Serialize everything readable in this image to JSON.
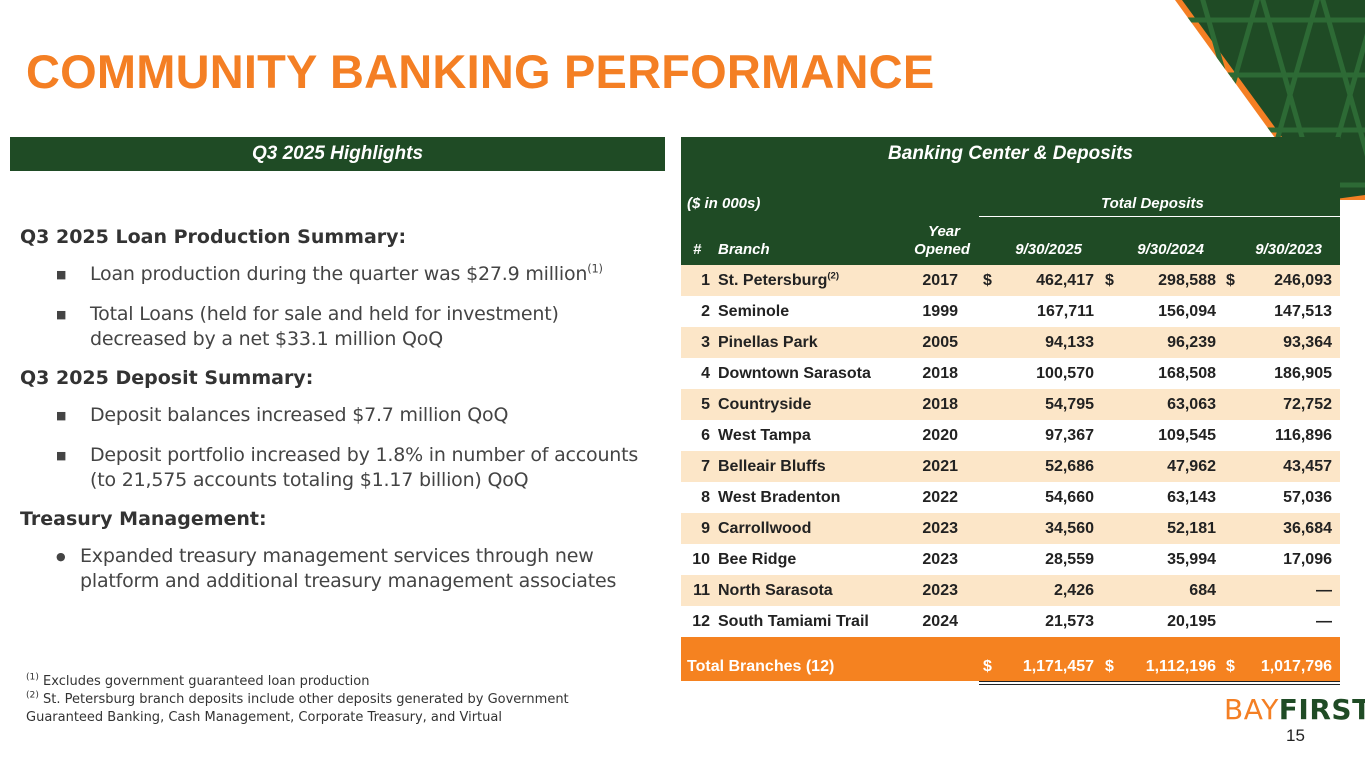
{
  "title": "COMMUNITY BANKING PERFORMANCE",
  "left_header": "Q3 2025 Highlights",
  "right_header": "Banking Center & Deposits",
  "highlights": {
    "loan_head": "Q3 2025 Loan Production Summary:",
    "loan_item1": "Loan production during the quarter was $27.9 million",
    "loan_item1_sup": "(1)",
    "loan_item2": "Total Loans (held for sale and held for investment) decreased by a net $33.1 million QoQ",
    "deposit_head": "Q3 2025 Deposit Summary:",
    "deposit_item1": "Deposit balances increased $7.7 million QoQ",
    "deposit_item2": "Deposit portfolio increased by 1.8% in number of accounts (to 21,575 accounts totaling $1.17 billion) QoQ",
    "treasury_head": "Treasury Management:",
    "treasury_item1": "Expanded treasury management services through new platform and additional treasury management associates"
  },
  "footnotes": {
    "f1_mark": "(1)",
    "f1": "Excludes government guaranteed loan production",
    "f2_mark": "(2)",
    "f2_line1": "St. Petersburg branch deposits include other deposits generated by Government",
    "f2_line2": "Guaranteed Banking, Cash Management, Corporate Treasury, and Virtual"
  },
  "table": {
    "units": "($ in 000s)",
    "group_label": "Total Deposits",
    "col_num": "#",
    "col_branch": "Branch",
    "col_year_1": "Year",
    "col_year_2": "Opened",
    "col_d1": "9/30/2025",
    "col_d2": "9/30/2024",
    "col_d3": "9/30/2023",
    "rows": [
      {
        "num": "1",
        "branch": "St. Petersburg",
        "sup": "(2)",
        "year": "2017",
        "dollar": "$",
        "v1": "462,417",
        "v2": "298,588",
        "v3": "246,093"
      },
      {
        "num": "2",
        "branch": "Seminole",
        "sup": "",
        "year": "1999",
        "dollar": "",
        "v1": "167,711",
        "v2": "156,094",
        "v3": "147,513"
      },
      {
        "num": "3",
        "branch": "Pinellas Park",
        "sup": "",
        "year": "2005",
        "dollar": "",
        "v1": "94,133",
        "v2": "96,239",
        "v3": "93,364"
      },
      {
        "num": "4",
        "branch": "Downtown Sarasota",
        "sup": "",
        "year": "2018",
        "dollar": "",
        "v1": "100,570",
        "v2": "168,508",
        "v3": "186,905"
      },
      {
        "num": "5",
        "branch": "Countryside",
        "sup": "",
        "year": "2018",
        "dollar": "",
        "v1": "54,795",
        "v2": "63,063",
        "v3": "72,752"
      },
      {
        "num": "6",
        "branch": "West Tampa",
        "sup": "",
        "year": "2020",
        "dollar": "",
        "v1": "97,367",
        "v2": "109,545",
        "v3": "116,896"
      },
      {
        "num": "7",
        "branch": "Belleair Bluffs",
        "sup": "",
        "year": "2021",
        "dollar": "",
        "v1": "52,686",
        "v2": "47,962",
        "v3": "43,457"
      },
      {
        "num": "8",
        "branch": "West Bradenton",
        "sup": "",
        "year": "2022",
        "dollar": "",
        "v1": "54,660",
        "v2": "63,143",
        "v3": "57,036"
      },
      {
        "num": "9",
        "branch": "Carrollwood",
        "sup": "",
        "year": "2023",
        "dollar": "",
        "v1": "34,560",
        "v2": "52,181",
        "v3": "36,684"
      },
      {
        "num": "10",
        "branch": "Bee Ridge",
        "sup": "",
        "year": "2023",
        "dollar": "",
        "v1": "28,559",
        "v2": "35,994",
        "v3": "17,096"
      },
      {
        "num": "11",
        "branch": "North Sarasota",
        "sup": "",
        "year": "2023",
        "dollar": "",
        "v1": "2,426",
        "v2": "684",
        "v3": "—"
      },
      {
        "num": "12",
        "branch": "South Tamiami Trail",
        "sup": "",
        "year": "2024",
        "dollar": "",
        "v1": "21,573",
        "v2": "20,195",
        "v3": "—"
      }
    ],
    "total_label": "Total Branches (12)",
    "total_dollar": "$",
    "total_v1": "1,171,457",
    "total_v2": "1,112,196",
    "total_v3": "1,017,796"
  },
  "logo": {
    "bay": "BAY",
    "first": "FIRST"
  },
  "page_number": "15",
  "colors": {
    "orange": "#f47f24",
    "green": "#1f4b25",
    "peach": "#fce6c8"
  }
}
